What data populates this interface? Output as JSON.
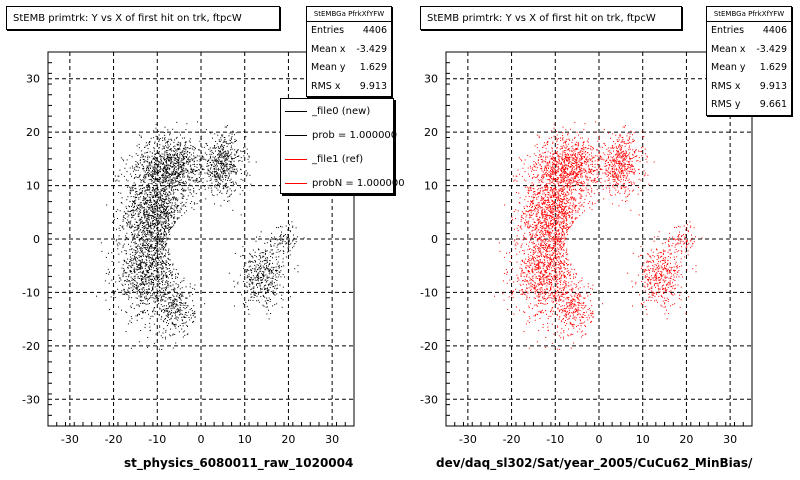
{
  "chart_data": [
    {
      "type": "scatter",
      "title": "StEMB primtrk: Y vs X of first hit on trk, ftpcW",
      "xlabel": "st_physics_6080011_raw_1020004",
      "ylabel": "",
      "xlim": [
        -35,
        35
      ],
      "ylim": [
        -35,
        35
      ],
      "xticks": [
        -30,
        -20,
        -10,
        0,
        10,
        20,
        30
      ],
      "yticks": [
        -30,
        -20,
        -10,
        0,
        10,
        20,
        30
      ],
      "grid": true,
      "marker_color": "#000000",
      "stats": {
        "name": "StEMBGa PfrkXfYFW",
        "rows": [
          {
            "label": "Entries",
            "value": "4406"
          },
          {
            "label": "Mean x",
            "value": "-3.429"
          },
          {
            "label": "Mean y",
            "value": "1.629"
          },
          {
            "label": "RMS x",
            "value": "9.913"
          }
        ]
      },
      "legend": {
        "placement": "top-right",
        "entries": [
          {
            "label": "_file0 (new)",
            "color": "#000000"
          },
          {
            "label": "prob = 1.000000",
            "color": "#000000"
          },
          {
            "label": "_file1 (ref)",
            "color": "#ff0000"
          },
          {
            "label": "probN = 1.000000",
            "color": "#ff0000"
          }
        ]
      },
      "regions": [
        {
          "cx": -10.5,
          "cy": 5,
          "sx": 6.5,
          "sy": 11,
          "n": 1700
        },
        {
          "cx": -6,
          "cy": 14,
          "sx": 7,
          "sy": 5,
          "n": 700
        },
        {
          "cx": 5,
          "cy": 14,
          "sx": 4.5,
          "sy": 5,
          "n": 500
        },
        {
          "cx": -13,
          "cy": -7,
          "sx": 6,
          "sy": 7,
          "n": 700
        },
        {
          "cx": -6,
          "cy": -13,
          "sx": 4,
          "sy": 5,
          "n": 300
        },
        {
          "cx": 14,
          "cy": -7,
          "sx": 4.5,
          "sy": 5,
          "n": 400
        },
        {
          "cx": 19,
          "cy": 0,
          "sx": 3.5,
          "sy": 3,
          "n": 100
        }
      ]
    },
    {
      "type": "scatter",
      "title": "StEMB primtrk: Y vs X of first hit on trk, ftpcW",
      "xlabel": "dev/daq_sl302/Sat/year_2005/CuCu62_MinBias/",
      "ylabel": "",
      "xlim": [
        -35,
        35
      ],
      "ylim": [
        -35,
        35
      ],
      "xticks": [
        -30,
        -20,
        -10,
        0,
        10,
        20,
        30
      ],
      "yticks": [
        -30,
        -20,
        -10,
        0,
        10,
        20,
        30
      ],
      "grid": true,
      "marker_color": "#ff0000",
      "stats": {
        "name": "StEMBGa PfrkXfYFW",
        "rows": [
          {
            "label": "Entries",
            "value": "4406"
          },
          {
            "label": "Mean x",
            "value": "-3.429"
          },
          {
            "label": "Mean y",
            "value": "1.629"
          },
          {
            "label": "RMS x",
            "value": "9.913"
          },
          {
            "label": "RMS y",
            "value": "9.661"
          }
        ]
      },
      "regions": [
        {
          "cx": -10.5,
          "cy": 5,
          "sx": 6.5,
          "sy": 11,
          "n": 1700
        },
        {
          "cx": -6,
          "cy": 14,
          "sx": 7,
          "sy": 5,
          "n": 700
        },
        {
          "cx": 5,
          "cy": 14,
          "sx": 4.5,
          "sy": 5,
          "n": 500
        },
        {
          "cx": -13,
          "cy": -7,
          "sx": 6,
          "sy": 7,
          "n": 700
        },
        {
          "cx": -6,
          "cy": -13,
          "sx": 4,
          "sy": 5,
          "n": 300
        },
        {
          "cx": 14,
          "cy": -7,
          "sx": 4.5,
          "sy": 5,
          "n": 400
        },
        {
          "cx": 19,
          "cy": 0,
          "sx": 3.5,
          "sy": 3,
          "n": 100
        }
      ]
    }
  ]
}
